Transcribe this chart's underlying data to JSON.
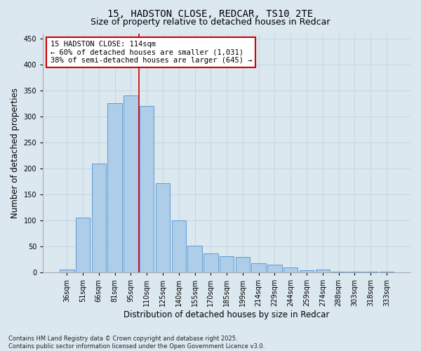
{
  "title1": "15, HADSTON CLOSE, REDCAR, TS10 2TE",
  "title2": "Size of property relative to detached houses in Redcar",
  "xlabel": "Distribution of detached houses by size in Redcar",
  "ylabel": "Number of detached properties",
  "categories": [
    "36sqm",
    "51sqm",
    "66sqm",
    "81sqm",
    "95sqm",
    "110sqm",
    "125sqm",
    "140sqm",
    "155sqm",
    "170sqm",
    "185sqm",
    "199sqm",
    "214sqm",
    "229sqm",
    "244sqm",
    "259sqm",
    "274sqm",
    "288sqm",
    "303sqm",
    "318sqm",
    "333sqm"
  ],
  "values": [
    6,
    106,
    210,
    325,
    340,
    320,
    171,
    100,
    51,
    36,
    31,
    30,
    17,
    15,
    9,
    4,
    5,
    1,
    1,
    1,
    1
  ],
  "bar_color": "#aecde8",
  "bar_edge_color": "#5b9bd5",
  "vline_color": "#cc0000",
  "vline_x": 4.5,
  "annotation_text": "15 HADSTON CLOSE: 114sqm\n← 60% of detached houses are smaller (1,031)\n38% of semi-detached houses are larger (645) →",
  "annotation_box_color": "#ffffff",
  "annotation_box_edge_color": "#cc0000",
  "ylim": [
    0,
    460
  ],
  "yticks": [
    0,
    50,
    100,
    150,
    200,
    250,
    300,
    350,
    400,
    450
  ],
  "grid_color": "#b8cfe0",
  "background_color": "#dce8f0",
  "footer_text": "Contains HM Land Registry data © Crown copyright and database right 2025.\nContains public sector information licensed under the Open Government Licence v3.0.",
  "title_fontsize": 10,
  "subtitle_fontsize": 9,
  "axis_label_fontsize": 8.5,
  "tick_fontsize": 7,
  "annotation_fontsize": 7.5,
  "footer_fontsize": 6
}
